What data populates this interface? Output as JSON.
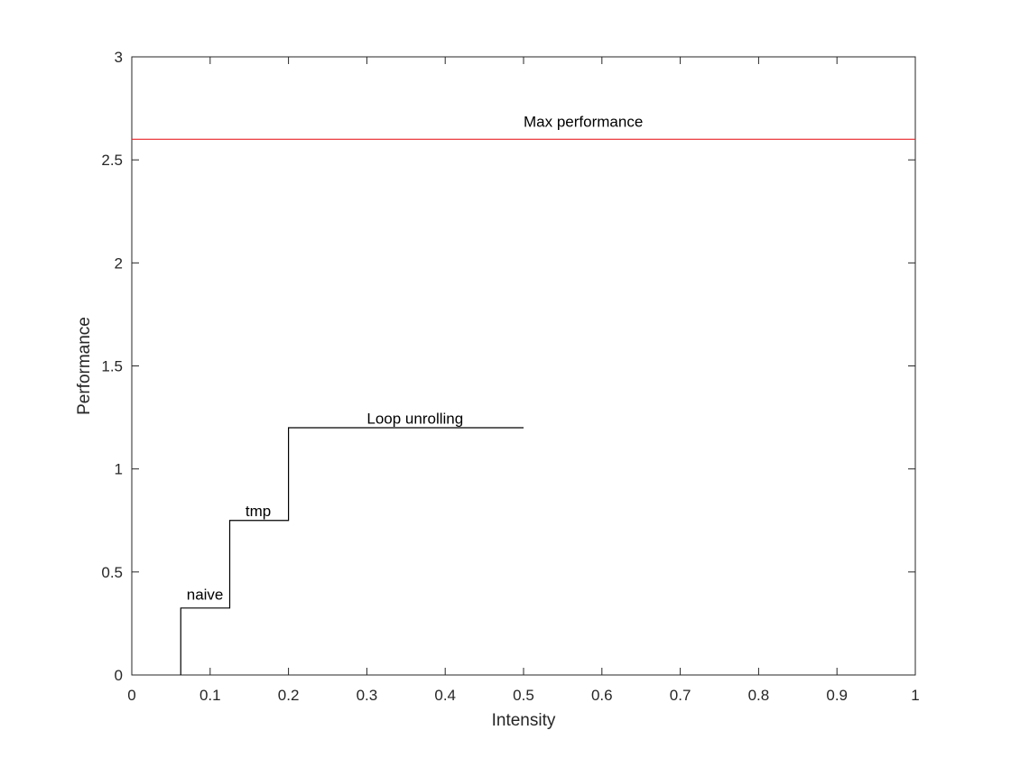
{
  "chart_data": {
    "type": "line",
    "title": "",
    "xlabel": "Intensity",
    "ylabel": "Performance",
    "xlim": [
      0,
      1
    ],
    "ylim": [
      0,
      3
    ],
    "xticks": [
      0,
      0.1,
      0.2,
      0.3,
      0.4,
      0.5,
      0.6,
      0.7,
      0.8,
      0.9,
      1
    ],
    "xtick_labels": [
      "0",
      "0.1",
      "0.2",
      "0.3",
      "0.4",
      "0.5",
      "0.6",
      "0.7",
      "0.8",
      "0.9",
      "1"
    ],
    "yticks": [
      0,
      0.5,
      1,
      1.5,
      2,
      2.5,
      3
    ],
    "ytick_labels": [
      "0",
      "0.5",
      "1",
      "1.5",
      "2",
      "2.5",
      "3"
    ],
    "grid": false,
    "series": [
      {
        "color": "#000000",
        "x": [
          0.0625,
          0.0625,
          0.125,
          0.125,
          0.2,
          0.2,
          0.5
        ],
        "y": [
          0,
          0.325,
          0.325,
          0.75,
          0.75,
          1.2,
          1.2
        ]
      },
      {
        "color": "#e8262a",
        "x": [
          0,
          1
        ],
        "y": [
          2.6,
          2.6
        ]
      }
    ],
    "annotations": [
      {
        "text": "Max performance",
        "x": 0.5,
        "y": 2.66
      },
      {
        "text": "Loop unrolling",
        "x": 0.3,
        "y": 1.22
      },
      {
        "text": "tmp",
        "x": 0.145,
        "y": 0.77
      },
      {
        "text": "naive",
        "x": 0.07,
        "y": 0.365
      }
    ]
  }
}
